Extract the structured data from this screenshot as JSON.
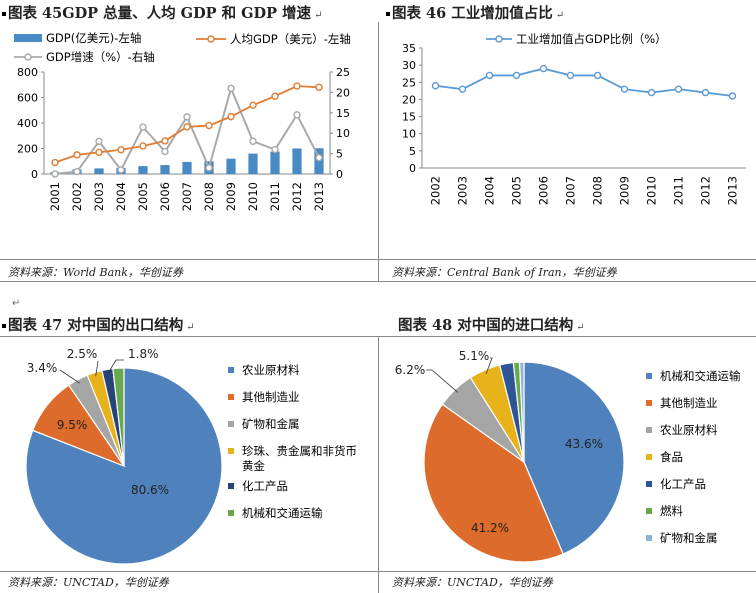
{
  "charts": {
    "c45": {
      "title": "图表 45GDP 总量、人均 GDP 和 GDP 增速",
      "source": "资料来源：World Bank，华创证券",
      "legend": {
        "gdp": "GDP(亿美元)-左轴",
        "pc": "人均GDP（美元）-左轴",
        "growth": "GDP增速（%）-右轴"
      }
    },
    "c46": {
      "title": "图表 46 工业增加值占比",
      "source": "资料来源：Central Bank of Iran，华创证券",
      "legend": {
        "series": "工业增加值占GDP比例（%）"
      }
    },
    "c47": {
      "title": "图表 47 对中国的出口结构",
      "source": "资料来源：UNCTAD，华创证券"
    },
    "c48": {
      "title": "图表 48 对中国的进口结构",
      "source": "资料来源：UNCTAD，华创证券"
    }
  },
  "colors": {
    "bar": "#4a8ac4",
    "pc_line": "#e07c34",
    "growth_line": "#a9a9a9",
    "line46": "#5b9bd5",
    "axis": "#888888",
    "grid": "#d9d9d9",
    "text": "#222222"
  },
  "chart_data": [
    {
      "type": "bar",
      "title": "图表 45GDP 总量、人均 GDP 和 GDP 增速",
      "categories": [
        "2001",
        "2002",
        "2003",
        "2004",
        "2005",
        "2006",
        "2007",
        "2008",
        "2009",
        "2010",
        "2011",
        "2012",
        "2013"
      ],
      "ylim": [
        0,
        800
      ],
      "yticks": [
        0,
        200,
        400,
        600,
        800
      ],
      "y2lim": [
        0,
        25
      ],
      "y2ticks": [
        0,
        5,
        10,
        15,
        20,
        25
      ],
      "series": [
        {
          "name": "GDP(亿美元)-左轴",
          "type": "bar",
          "axis": "left",
          "values": [
            14,
            36,
            44,
            48,
            62,
            70,
            95,
            100,
            120,
            160,
            175,
            200,
            202
          ]
        },
        {
          "name": "人均GDP（美元）-左轴",
          "type": "line",
          "axis": "left",
          "values": [
            90,
            150,
            170,
            190,
            220,
            260,
            370,
            380,
            450,
            540,
            610,
            690,
            680
          ]
        },
        {
          "name": "GDP增速（%）-右轴",
          "type": "line",
          "axis": "right",
          "values": [
            0,
            0.6,
            8,
            1,
            11.5,
            5.5,
            14,
            1.5,
            21,
            8,
            6,
            14.5,
            4
          ]
        }
      ]
    },
    {
      "type": "line",
      "title": "图表 46 工业增加值占比",
      "categories": [
        "2002",
        "2003",
        "2004",
        "2005",
        "2006",
        "2007",
        "2008",
        "2009",
        "2010",
        "2011",
        "2012",
        "2013"
      ],
      "ylim": [
        0,
        35
      ],
      "yticks": [
        0,
        5,
        10,
        15,
        20,
        25,
        30,
        35
      ],
      "series": [
        {
          "name": "工业增加值占GDP比例（%）",
          "values": [
            24,
            23,
            27,
            27,
            29,
            27,
            27,
            23,
            22,
            23,
            22,
            21
          ]
        }
      ]
    },
    {
      "type": "pie",
      "title": "图表 47 对中国的出口结构",
      "slices": [
        {
          "label": "农业原材料",
          "value": 80.6,
          "display": "80.6%",
          "color": "#4f81bd"
        },
        {
          "label": "其他制造业",
          "value": 9.5,
          "display": "9.5%",
          "color": "#dd6b2c"
        },
        {
          "label": "矿物和金属",
          "value": 3.4,
          "display": "3.4%",
          "color": "#a5a5a5"
        },
        {
          "label": "珍珠、贵金属和非货币黄金",
          "value": 2.5,
          "display": "2.5%",
          "color": "#e8b21a"
        },
        {
          "label": "化工产品",
          "value": 1.8,
          "display": "1.8%",
          "color": "#264478"
        },
        {
          "label": "机械和交通运输",
          "value": 1.8,
          "display": "",
          "color": "#6aa84f"
        }
      ]
    },
    {
      "type": "pie",
      "title": "图表 48 对中国的进口结构",
      "slices": [
        {
          "label": "机械和交通运输",
          "value": 43.6,
          "display": "43.6%",
          "color": "#4f81bd"
        },
        {
          "label": "其他制造业",
          "value": 41.2,
          "display": "41.2%",
          "color": "#dd6b2c"
        },
        {
          "label": "农业原材料",
          "value": 6.2,
          "display": "6.2%",
          "color": "#a5a5a5"
        },
        {
          "label": "食品",
          "value": 5.1,
          "display": "5.1%",
          "color": "#e8b21a"
        },
        {
          "label": "化工产品",
          "value": 2.2,
          "display": "",
          "color": "#2e5596"
        },
        {
          "label": "燃料",
          "value": 1.0,
          "display": "",
          "color": "#6aa84f"
        },
        {
          "label": "矿物和金属",
          "value": 0.7,
          "display": "",
          "color": "#8fb4d9"
        }
      ]
    }
  ]
}
